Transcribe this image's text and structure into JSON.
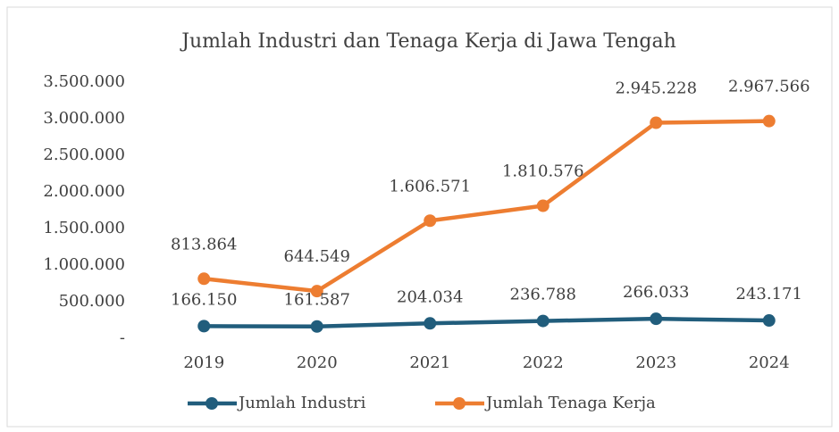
{
  "chart_data": {
    "type": "line",
    "title": "Jumlah Industri dan Tenaga Kerja di Jawa Tengah",
    "categories": [
      "2019",
      "2020",
      "2021",
      "2022",
      "2023",
      "2024"
    ],
    "series": [
      {
        "name": "Jumlah Industri",
        "color": "#215d7c",
        "values": [
          166150,
          161587,
          204034,
          236788,
          266033,
          243171
        ],
        "value_labels": [
          "166.150",
          "161.587",
          "204.034",
          "236.788",
          "266.033",
          "243.171"
        ]
      },
      {
        "name": "Jumlah Tenaga Kerja",
        "color": "#ed7d31",
        "values": [
          813864,
          644549,
          1606571,
          1810576,
          2945228,
          2967566
        ],
        "value_labels": [
          "813.864",
          "644.549",
          "1.606.571",
          "1.810.576",
          "2.945.228",
          "2.967.566"
        ]
      }
    ],
    "ylim": [
      0,
      3500000
    ],
    "yticks": [
      {
        "value": 0,
        "label": "-"
      },
      {
        "value": 500000,
        "label": "500.000"
      },
      {
        "value": 1000000,
        "label": "1.000.000"
      },
      {
        "value": 1500000,
        "label": "1.500.000"
      },
      {
        "value": 2000000,
        "label": "2.000.000"
      },
      {
        "value": 2500000,
        "label": "2.500.000"
      },
      {
        "value": 3000000,
        "label": "3.000.000"
      },
      {
        "value": 3500000,
        "label": "3.500.000"
      }
    ],
    "grid": false,
    "legend": "bottom"
  }
}
